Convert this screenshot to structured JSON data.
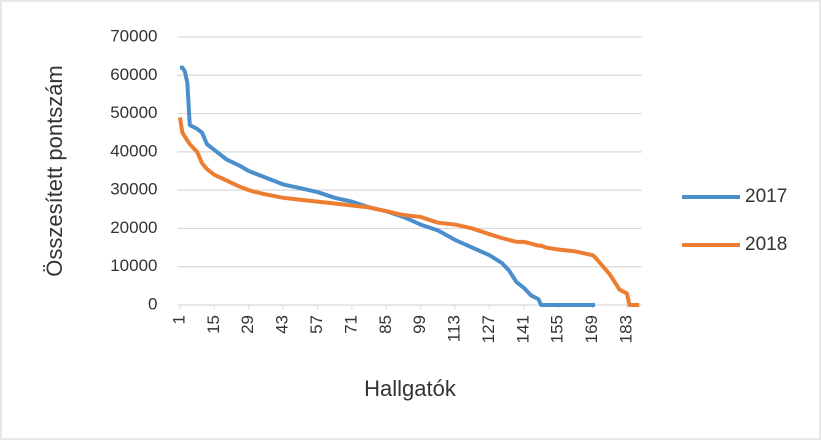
{
  "chart_data": {
    "type": "line",
    "xlabel": "Hallgatók",
    "ylabel": "Összesített pontszám",
    "x": [
      1,
      2,
      3,
      4,
      5,
      8,
      10,
      12,
      15,
      20,
      25,
      29,
      35,
      43,
      50,
      57,
      64,
      71,
      78,
      85,
      92,
      99,
      106,
      113,
      120,
      127,
      132,
      135,
      138,
      141,
      144,
      147,
      148,
      150,
      155,
      162,
      169,
      170,
      176,
      180,
      183,
      184,
      186,
      188
    ],
    "series": [
      {
        "name": "2017",
        "color": "#4a8fcc",
        "values": [
          62000,
          62000,
          61000,
          58000,
          47000,
          46000,
          45000,
          42000,
          40500,
          38000,
          36500,
          35000,
          33500,
          31500,
          30500,
          29500,
          28000,
          27000,
          25500,
          24500,
          23000,
          21000,
          19500,
          17000,
          15000,
          13000,
          11000,
          9000,
          6000,
          4500,
          2500,
          1500,
          0,
          0,
          0,
          0,
          0,
          0,
          null,
          null,
          null,
          null,
          null,
          null
        ]
      },
      {
        "name": "2018",
        "color": "#ed7d31",
        "values": [
          49000,
          45000,
          44000,
          43000,
          42000,
          40000,
          37000,
          35500,
          34000,
          32500,
          31000,
          30000,
          29000,
          28000,
          27500,
          27000,
          26500,
          26000,
          25500,
          24500,
          23500,
          23000,
          21500,
          21000,
          20000,
          18500,
          17500,
          17000,
          16500,
          16500,
          16000,
          15500,
          15500,
          15000,
          14500,
          14000,
          13000,
          12500,
          8000,
          4000,
          3000,
          0,
          0,
          0
        ]
      }
    ],
    "xlim": [
      0,
      189
    ],
    "xticks": [
      1,
      15,
      29,
      43,
      57,
      71,
      85,
      99,
      113,
      127,
      141,
      155,
      169,
      183
    ],
    "ylim": [
      0,
      70000
    ],
    "yticks": [
      0,
      10000,
      20000,
      30000,
      40000,
      50000,
      60000,
      70000
    ],
    "grid": true,
    "legend": "right"
  }
}
